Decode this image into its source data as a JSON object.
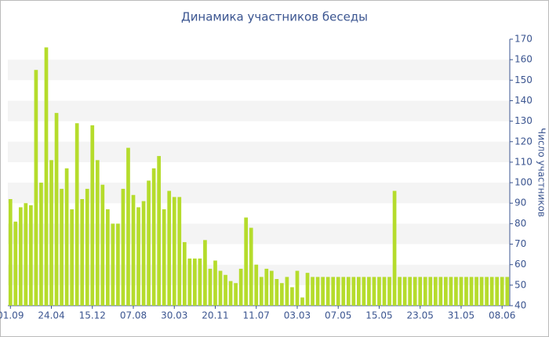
{
  "chart_data": {
    "type": "bar",
    "title": "Динамика участников беседы",
    "y_label": "Число участников",
    "color": "#b5dc2c",
    "grid_bands": true,
    "y_axis_side": "right",
    "categories": [
      "01.09",
      null,
      null,
      null,
      null,
      null,
      null,
      null,
      "24.04",
      null,
      null,
      null,
      null,
      null,
      null,
      null,
      "15.12",
      null,
      null,
      null,
      null,
      null,
      null,
      null,
      "07.08",
      null,
      null,
      null,
      null,
      null,
      null,
      null,
      "30.03",
      null,
      null,
      null,
      null,
      null,
      null,
      null,
      "20.11",
      null,
      null,
      null,
      null,
      null,
      null,
      null,
      "11.07",
      null,
      null,
      null,
      null,
      null,
      null,
      null,
      "03.03",
      null,
      null,
      null,
      null,
      null,
      null,
      null,
      "07.05",
      null,
      null,
      null,
      null,
      null,
      null,
      null,
      "15.05",
      null,
      null,
      null,
      null,
      null,
      null,
      null,
      "23.05",
      null,
      null,
      null,
      null,
      null,
      null,
      null,
      "31.05",
      null,
      null,
      null,
      null,
      null,
      null,
      null,
      "08.06",
      null
    ],
    "values": [
      92,
      81,
      88,
      90,
      89,
      155,
      100,
      166,
      111,
      134,
      97,
      107,
      87,
      129,
      92,
      97,
      128,
      111,
      99,
      87,
      80,
      80,
      97,
      117,
      94,
      88,
      91,
      101,
      107,
      113,
      87,
      96,
      93,
      93,
      71,
      63,
      63,
      63,
      72,
      58,
      62,
      57,
      55,
      52,
      51,
      58,
      83,
      78,
      60,
      54,
      58,
      57,
      53,
      51,
      54,
      49,
      57,
      44,
      56,
      54,
      54,
      54,
      54,
      54,
      54,
      54,
      54,
      54,
      54,
      54,
      54,
      54,
      54,
      54,
      54,
      96,
      54,
      54,
      54,
      54,
      54,
      54,
      54,
      54,
      54,
      54,
      54,
      54,
      54,
      54,
      54,
      54,
      54,
      54,
      54,
      54,
      54,
      54
    ],
    "ylim": [
      40,
      170
    ],
    "yticks": [
      40,
      50,
      60,
      70,
      80,
      90,
      100,
      110,
      120,
      130,
      140,
      150,
      160,
      170
    ]
  }
}
